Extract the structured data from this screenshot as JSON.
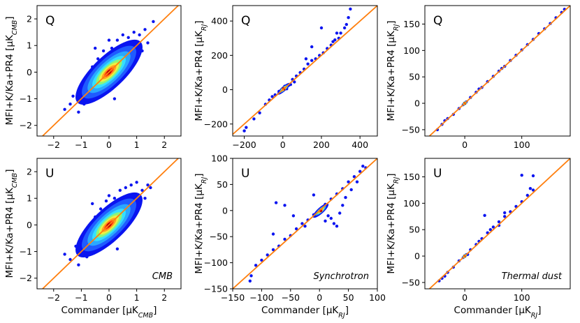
{
  "chart_data": [
    {
      "type": "scatter",
      "panel_label": "Q",
      "component": "",
      "ylabel": "MFI+K/Ka+PR4 [μK_CMB]",
      "xlabel": "",
      "xlim": [
        -2.6,
        2.6
      ],
      "ylim": [
        -2.4,
        2.5
      ],
      "xticks": [
        -2,
        -1,
        0,
        1,
        2
      ],
      "yticks": [
        -2,
        -1,
        0,
        1,
        2
      ],
      "xtick_labels": [
        "−2",
        "−1",
        "0",
        "1",
        "2"
      ],
      "ytick_labels": [
        "−2",
        "−1",
        "0",
        "1",
        "2"
      ],
      "density_core": {
        "center": [
          0,
          0
        ],
        "slope": 1,
        "spread": [
          0.45,
          0.25
        ]
      },
      "points": [
        [
          -1.4,
          -1.2
        ],
        [
          -1.3,
          -0.9
        ],
        [
          -1.1,
          -1.5
        ],
        [
          -1.0,
          -0.5
        ],
        [
          -0.9,
          -1.2
        ],
        [
          -0.8,
          -0.2
        ],
        [
          -0.7,
          -0.9
        ],
        [
          -0.6,
          0.2
        ],
        [
          -0.5,
          -1.0
        ],
        [
          -0.4,
          0.5
        ],
        [
          -0.3,
          -0.6
        ],
        [
          -0.2,
          0.8
        ],
        [
          0.0,
          -0.6
        ],
        [
          0.1,
          0.9
        ],
        [
          0.2,
          -0.4
        ],
        [
          0.3,
          1.2
        ],
        [
          0.4,
          -0.2
        ],
        [
          0.5,
          1.4
        ],
        [
          0.6,
          0.1
        ],
        [
          0.7,
          1.3
        ],
        [
          0.8,
          0.3
        ],
        [
          0.9,
          1.5
        ],
        [
          1.0,
          0.6
        ],
        [
          1.1,
          1.4
        ],
        [
          1.2,
          0.8
        ],
        [
          1.3,
          1.6
        ],
        [
          1.4,
          1.1
        ],
        [
          1.6,
          1.9
        ],
        [
          -1.6,
          -1.4
        ],
        [
          0.0,
          1.2
        ],
        [
          0.2,
          -1.0
        ],
        [
          -0.5,
          0.9
        ]
      ],
      "fit_line": [
        [
          -2.6,
          -2.6
        ],
        [
          2.6,
          2.6
        ]
      ]
    },
    {
      "type": "scatter",
      "panel_label": "Q",
      "component": "",
      "ylabel": "MFI+K/Ka+PR4 [μK_RJ]",
      "xlabel": "",
      "xlim": [
        -260,
        490
      ],
      "ylim": [
        -270,
        490
      ],
      "xticks": [
        -200,
        0,
        200,
        400
      ],
      "yticks": [
        -200,
        0,
        200,
        400
      ],
      "xtick_labels": [
        "−200",
        "0",
        "200",
        "400"
      ],
      "ytick_labels": [
        "−200",
        "0",
        "200",
        "400"
      ],
      "density_core": {
        "center": [
          5,
          5
        ],
        "slope": 1,
        "spread": [
          25,
          12
        ]
      },
      "points": [
        [
          -200,
          -240
        ],
        [
          -190,
          -220
        ],
        [
          -150,
          -170
        ],
        [
          -120,
          -135
        ],
        [
          -90,
          -85
        ],
        [
          -70,
          -60
        ],
        [
          -55,
          -40
        ],
        [
          -40,
          -30
        ],
        [
          -20,
          -10
        ],
        [
          10,
          20
        ],
        [
          30,
          25
        ],
        [
          50,
          60
        ],
        [
          70,
          80
        ],
        [
          90,
          100
        ],
        [
          110,
          120
        ],
        [
          130,
          150
        ],
        [
          150,
          170
        ],
        [
          170,
          180
        ],
        [
          190,
          200
        ],
        [
          210,
          215
        ],
        [
          230,
          240
        ],
        [
          250,
          260
        ],
        [
          270,
          290
        ],
        [
          290,
          300
        ],
        [
          300,
          330
        ],
        [
          320,
          360
        ],
        [
          330,
          380
        ],
        [
          340,
          420
        ],
        [
          350,
          470
        ],
        [
          200,
          360
        ],
        [
          150,
          250
        ],
        [
          120,
          180
        ],
        [
          260,
          280
        ],
        [
          280,
          330
        ],
        [
          60,
          45
        ],
        [
          40,
          30
        ],
        [
          20,
          5
        ]
      ],
      "fit_line": [
        [
          -260,
          -260
        ],
        [
          490,
          490
        ]
      ]
    },
    {
      "type": "scatter",
      "panel_label": "Q",
      "component": "",
      "ylabel": "MFI+K/Ka+PR4 [μK_RJ]",
      "xlabel": "",
      "xlim": [
        -70,
        185
      ],
      "ylim": [
        -62,
        185
      ],
      "xticks": [
        0,
        100
      ],
      "yticks": [
        -50,
        0,
        50,
        100,
        150
      ],
      "xtick_labels": [
        "0",
        "100"
      ],
      "ytick_labels": [
        "−50",
        "0",
        "50",
        "100",
        "150"
      ],
      "density_core": {
        "center": [
          0,
          0
        ],
        "slope": 1,
        "spread": [
          4,
          2
        ]
      },
      "points": [
        [
          -48,
          -50
        ],
        [
          -40,
          -40
        ],
        [
          -30,
          -29
        ],
        [
          -20,
          -21
        ],
        [
          -10,
          -10
        ],
        [
          10,
          11
        ],
        [
          20,
          21
        ],
        [
          30,
          30
        ],
        [
          40,
          41
        ],
        [
          50,
          51
        ],
        [
          60,
          61
        ],
        [
          70,
          70
        ],
        [
          80,
          81
        ],
        [
          90,
          91
        ],
        [
          100,
          101
        ],
        [
          110,
          111
        ],
        [
          120,
          121
        ],
        [
          130,
          132
        ],
        [
          140,
          141
        ],
        [
          150,
          151
        ],
        [
          160,
          162
        ],
        [
          170,
          172
        ],
        [
          175,
          178
        ],
        [
          -35,
          -33
        ],
        [
          25,
          27
        ],
        [
          65,
          66
        ]
      ],
      "fit_line": [
        [
          -70,
          -70
        ],
        [
          185,
          185
        ]
      ]
    },
    {
      "type": "scatter",
      "panel_label": "U",
      "component": "CMB",
      "ylabel": "MFI+K/Ka+PR4 [μK_CMB]",
      "xlabel": "Commander [μK_CMB]",
      "xlim": [
        -2.6,
        2.6
      ],
      "ylim": [
        -2.4,
        2.5
      ],
      "xticks": [
        -2,
        -1,
        0,
        1,
        2
      ],
      "yticks": [
        -2,
        -1,
        0,
        1,
        2
      ],
      "xtick_labels": [
        "−2",
        "−1",
        "0",
        "1",
        "2"
      ],
      "ytick_labels": [
        "−2",
        "−1",
        "0",
        "1",
        "2"
      ],
      "density_core": {
        "center": [
          0,
          0
        ],
        "slope": 1,
        "spread": [
          0.45,
          0.25
        ]
      },
      "points": [
        [
          -1.4,
          -1.3
        ],
        [
          -1.2,
          -0.8
        ],
        [
          -1.1,
          -1.5
        ],
        [
          -0.9,
          -0.4
        ],
        [
          -0.8,
          -1.2
        ],
        [
          -0.7,
          -0.1
        ],
        [
          -0.6,
          -0.9
        ],
        [
          -0.5,
          0.3
        ],
        [
          -0.4,
          -0.8
        ],
        [
          -0.3,
          0.6
        ],
        [
          -0.2,
          -0.5
        ],
        [
          -0.1,
          0.9
        ],
        [
          0.1,
          -0.5
        ],
        [
          0.2,
          1.0
        ],
        [
          0.3,
          -0.3
        ],
        [
          0.4,
          1.3
        ],
        [
          0.5,
          0.0
        ],
        [
          0.6,
          1.4
        ],
        [
          0.7,
          0.2
        ],
        [
          0.8,
          1.5
        ],
        [
          0.9,
          0.5
        ],
        [
          1.0,
          1.6
        ],
        [
          1.1,
          0.7
        ],
        [
          1.2,
          1.3
        ],
        [
          1.3,
          1.0
        ],
        [
          1.4,
          1.5
        ],
        [
          1.5,
          1.4
        ],
        [
          -1.6,
          -1.1
        ],
        [
          0.0,
          1.1
        ],
        [
          0.3,
          -0.9
        ],
        [
          -0.6,
          0.8
        ]
      ],
      "fit_line": [
        [
          -2.6,
          -2.6
        ],
        [
          2.6,
          2.6
        ]
      ]
    },
    {
      "type": "scatter",
      "panel_label": "U",
      "component": "Synchrotron",
      "ylabel": "MFI+K/Ka+PR4 [μK_RJ]",
      "xlabel": "Commander [μK_RJ]",
      "xlim": [
        -150,
        100
      ],
      "ylim": [
        -150,
        100
      ],
      "xticks": [
        -150,
        -100,
        -50,
        0,
        50,
        100
      ],
      "yticks": [
        -150,
        -100,
        -50,
        0,
        50,
        100
      ],
      "xtick_labels": [
        "−150",
        "−100",
        "−50",
        "0",
        "50",
        "100"
      ],
      "ytick_labels": [
        "−150",
        "−100",
        "−50",
        "0",
        "50",
        "100"
      ],
      "density_core": {
        "center": [
          2,
          0
        ],
        "slope": 1,
        "spread": [
          10,
          5
        ]
      },
      "points": [
        [
          -120,
          -135
        ],
        [
          -118,
          -125
        ],
        [
          -110,
          -105
        ],
        [
          -100,
          -95
        ],
        [
          -90,
          -85
        ],
        [
          -80,
          -75
        ],
        [
          -70,
          -68
        ],
        [
          -60,
          -55
        ],
        [
          -50,
          -48
        ],
        [
          -40,
          -35
        ],
        [
          -30,
          -25
        ],
        [
          -20,
          -18
        ],
        [
          -10,
          -8
        ],
        [
          10,
          12
        ],
        [
          20,
          22
        ],
        [
          30,
          32
        ],
        [
          40,
          42
        ],
        [
          50,
          55
        ],
        [
          60,
          65
        ],
        [
          70,
          75
        ],
        [
          75,
          85
        ],
        [
          80,
          82
        ],
        [
          -75,
          15
        ],
        [
          -60,
          10
        ],
        [
          -45,
          -10
        ],
        [
          -25,
          -30
        ],
        [
          -80,
          -45
        ],
        [
          10,
          -20
        ],
        [
          20,
          -15
        ],
        [
          25,
          -25
        ],
        [
          35,
          -5
        ],
        [
          40,
          10
        ],
        [
          -10,
          30
        ],
        [
          30,
          -30
        ],
        [
          15,
          -10
        ],
        [
          45,
          25
        ],
        [
          55,
          40
        ],
        [
          65,
          55
        ]
      ],
      "fit_line": [
        [
          -150,
          -150
        ],
        [
          100,
          100
        ]
      ]
    },
    {
      "type": "scatter",
      "panel_label": "U",
      "component": "Thermal dust",
      "ylabel": "MFI+K/Ka+PR4 [μK_RJ]",
      "xlabel": "Commander [μK_RJ]",
      "xlim": [
        -70,
        185
      ],
      "ylim": [
        -62,
        185
      ],
      "xticks": [
        0,
        100
      ],
      "yticks": [
        -50,
        0,
        50,
        100,
        150
      ],
      "xtick_labels": [
        "0",
        "100"
      ],
      "ytick_labels": [
        "−50",
        "0",
        "50",
        "100",
        "150"
      ],
      "density_core": {
        "center": [
          0,
          0
        ],
        "slope": 1,
        "spread": [
          4,
          2
        ]
      },
      "points": [
        [
          -45,
          -47
        ],
        [
          -40,
          -42
        ],
        [
          -30,
          -31
        ],
        [
          -20,
          -21
        ],
        [
          -10,
          -9
        ],
        [
          10,
          12
        ],
        [
          20,
          22
        ],
        [
          30,
          33
        ],
        [
          40,
          44
        ],
        [
          50,
          55
        ],
        [
          60,
          65
        ],
        [
          70,
          75
        ],
        [
          80,
          84
        ],
        [
          90,
          94
        ],
        [
          100,
          103
        ],
        [
          110,
          115
        ],
        [
          120,
          125
        ],
        [
          100,
          153
        ],
        [
          120,
          152
        ],
        [
          115,
          128
        ],
        [
          70,
          82
        ],
        [
          35,
          77
        ],
        [
          60,
          58
        ],
        [
          45,
          50
        ],
        [
          25,
          28
        ],
        [
          -35,
          -38
        ],
        [
          5,
          3
        ]
      ],
      "fit_line": [
        [
          -70,
          -70
        ],
        [
          185,
          185
        ]
      ]
    }
  ]
}
